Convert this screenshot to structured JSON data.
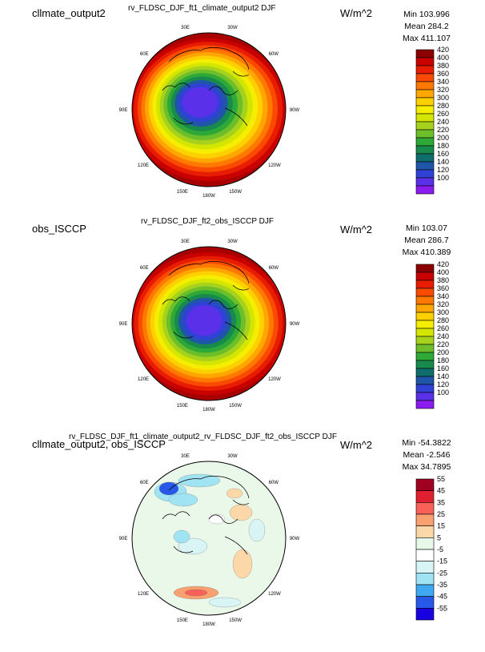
{
  "panels": [
    {
      "left_label": "cllmate_output2",
      "center_title": "rv_FLDSC_DJF_ft1_climate_output2  DJF",
      "units": "W/m^2",
      "stats": {
        "min": "Min 103.996",
        "mean": "Mean 284.2",
        "max": "Max 411.107"
      },
      "lon_labels": [
        "30E",
        "30W",
        "60E",
        "60W",
        "90E",
        "90W",
        "120E",
        "120W",
        "150E",
        "150W",
        "180W"
      ],
      "colorbar": {
        "labels": [
          "420",
          "400",
          "380",
          "360",
          "340",
          "320",
          "300",
          "280",
          "260",
          "240",
          "220",
          "200",
          "180",
          "160",
          "140",
          "120",
          "100"
        ],
        "colors": [
          "#8b0000",
          "#c80000",
          "#e81c00",
          "#f94a00",
          "#ff7800",
          "#ffa600",
          "#ffd000",
          "#f5ee00",
          "#d4e600",
          "#a6d21e",
          "#6cbe2a",
          "#2ea836",
          "#178a4c",
          "#0f6e6c",
          "#1f56a8",
          "#3042d6",
          "#5a30e8",
          "#8a1cf0"
        ]
      },
      "field": "clim"
    },
    {
      "left_label": "obs_ISCCP",
      "center_title": "rv_FLDSC_DJF_ft2_obs_ISCCP  DJF",
      "units": "W/m^2",
      "stats": {
        "min": "Min 103.07",
        "mean": "Mean 286.7",
        "max": "Max 410.389"
      },
      "lon_labels": [
        "30E",
        "30W",
        "60E",
        "60W",
        "90E",
        "90W",
        "120E",
        "120W",
        "150E",
        "150W",
        "180W"
      ],
      "colorbar": {
        "labels": [
          "420",
          "400",
          "380",
          "360",
          "340",
          "320",
          "300",
          "280",
          "260",
          "240",
          "220",
          "200",
          "180",
          "160",
          "140",
          "120",
          "100"
        ],
        "colors": [
          "#8b0000",
          "#c80000",
          "#e81c00",
          "#f94a00",
          "#ff7800",
          "#ffa600",
          "#ffd000",
          "#f5ee00",
          "#d4e600",
          "#a6d21e",
          "#6cbe2a",
          "#2ea836",
          "#178a4c",
          "#0f6e6c",
          "#1f56a8",
          "#3042d6",
          "#5a30e8",
          "#8a1cf0"
        ]
      },
      "field": "obs"
    },
    {
      "left_label": "cllmate_output2, obs_ISCCP",
      "center_title": "rv_FLDSC_DJF_ft1_climate_output2_rv_FLDSC_DJF_ft2_obs_ISCCP  DJF",
      "units": "W/m^2",
      "stats": {
        "min": "Min -54.3822",
        "mean": "Mean -2.546",
        "max": "Max 34.7895"
      },
      "lon_labels": [
        "30E",
        "30W",
        "60E",
        "60W",
        "90E",
        "90W",
        "120E",
        "120W",
        "150E",
        "150W",
        "180W"
      ],
      "colorbar": {
        "labels": [
          "55",
          "45",
          "35",
          "25",
          "15",
          "5",
          "-5",
          "-15",
          "-25",
          "-35",
          "-45",
          "-55"
        ],
        "colors": [
          "#a00020",
          "#e02030",
          "#f86058",
          "#f8a070",
          "#fcd8a8",
          "#e8f8e8",
          "#ffffff",
          "#d8f4f4",
          "#a0e4f4",
          "#40a8f0",
          "#2858e8",
          "#1800e0"
        ]
      },
      "field": "diff"
    }
  ],
  "chart_data": [
    {
      "type": "heatmap",
      "projection": "polar stereographic (north pole)",
      "title": "rv_FLDSC_DJF_ft1_climate_output2  DJF",
      "label": "cllmate_output2",
      "units": "W/m^2",
      "min": 103.996,
      "mean": 284.2,
      "max": 411.107,
      "colorbar_levels": [
        100,
        120,
        140,
        160,
        180,
        200,
        220,
        240,
        260,
        280,
        300,
        320,
        340,
        360,
        380,
        400,
        420
      ]
    },
    {
      "type": "heatmap",
      "projection": "polar stereographic (north pole)",
      "title": "rv_FLDSC_DJF_ft2_obs_ISCCP  DJF",
      "label": "obs_ISCCP",
      "units": "W/m^2",
      "min": 103.07,
      "mean": 286.7,
      "max": 410.389,
      "colorbar_levels": [
        100,
        120,
        140,
        160,
        180,
        200,
        220,
        240,
        260,
        280,
        300,
        320,
        340,
        360,
        380,
        400,
        420
      ]
    },
    {
      "type": "heatmap",
      "projection": "polar stereographic (north pole)",
      "title": "rv_FLDSC_DJF_ft1_climate_output2_rv_FLDSC_DJF_ft2_obs_ISCCP  DJF",
      "label": "cllmate_output2, obs_ISCCP",
      "units": "W/m^2",
      "min": -54.3822,
      "mean": -2.546,
      "max": 34.7895,
      "colorbar_levels": [
        -55,
        -45,
        -35,
        -25,
        -15,
        -5,
        5,
        15,
        25,
        35,
        45,
        55
      ]
    }
  ]
}
